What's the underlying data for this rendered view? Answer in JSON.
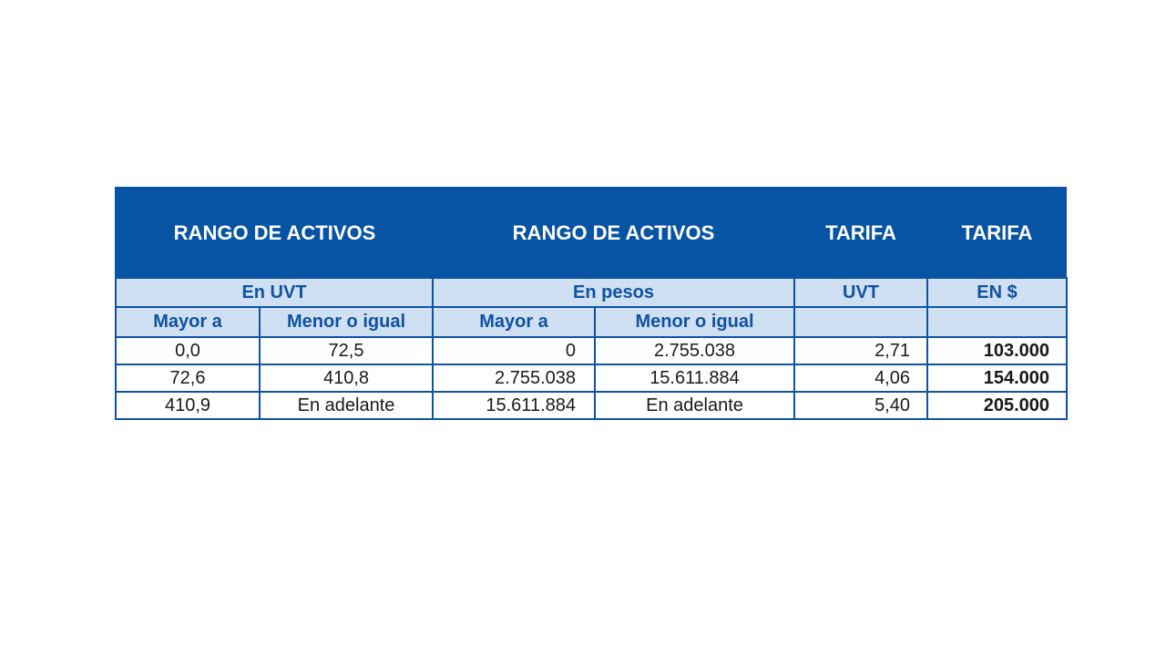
{
  "table": {
    "headers": {
      "group_uvt": "RANGO DE ACTIVOS",
      "group_pesos": "RANGO DE ACTIVOS",
      "tarifa_uvt": "TARIFA",
      "tarifa_pesos": "TARIFA"
    },
    "units": {
      "uvt": "En UVT",
      "pesos": "En pesos",
      "tarifa_uvt": "UVT",
      "tarifa_pesos": "EN $"
    },
    "bounds": {
      "uvt_mayor": "Mayor a",
      "uvt_menor": "Menor o igual",
      "pesos_mayor": "Mayor a",
      "pesos_menor": "Menor o igual"
    },
    "rows": [
      {
        "uvt_mayor": "0,0",
        "uvt_menor": "72,5",
        "pesos_mayor": "0",
        "pesos_menor": "2.755.038",
        "tarifa_uvt": "2,71",
        "tarifa_pesos": "103.000"
      },
      {
        "uvt_mayor": "72,6",
        "uvt_menor": "410,8",
        "pesos_mayor": "2.755.038",
        "pesos_menor": "15.611.884",
        "tarifa_uvt": "4,06",
        "tarifa_pesos": "154.000"
      },
      {
        "uvt_mayor": "410,9",
        "uvt_menor": "En adelante",
        "pesos_mayor": "15.611.884",
        "pesos_menor": "En adelante",
        "tarifa_uvt": "5,40",
        "tarifa_pesos": "205.000"
      }
    ]
  },
  "colors": {
    "header_band": "#0754a5",
    "sub_header_fill": "#cfe0f2",
    "accent_text": "#1052a2"
  }
}
